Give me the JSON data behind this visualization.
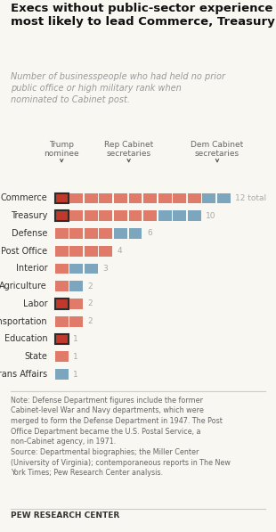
{
  "title": "Execs without public-sector experience\nmost likely to lead Commerce, Treasury",
  "subtitle": "Number of businesspeople who had held no prior\npublic office or high military rank when\nnominated to Cabinet post.",
  "categories": [
    "Commerce",
    "Treasury",
    "Defense",
    "Post Office",
    "Interior",
    "Agriculture",
    "Labor",
    "Transportation",
    "Education",
    "State",
    "Veterans Affairs"
  ],
  "trump_counts": [
    1,
    1,
    0,
    0,
    0,
    0,
    1,
    0,
    1,
    0,
    0
  ],
  "rep_counts": [
    9,
    6,
    4,
    4,
    1,
    1,
    1,
    2,
    0,
    1,
    0
  ],
  "dem_counts": [
    2,
    3,
    2,
    0,
    2,
    1,
    0,
    0,
    0,
    0,
    1
  ],
  "totals": [
    12,
    10,
    6,
    4,
    3,
    2,
    2,
    2,
    1,
    1,
    1
  ],
  "trump_color": "#c0392b",
  "rep_color": "#e07b6a",
  "dem_color": "#7ca6be",
  "trump_edge_color": "#2c2c2c",
  "note": "Note: Defense Department figures include the former\nCabinet-level War and Navy departments, which were\nmerged to form the Defense Department in 1947. The Post\nOffice Department became the U.S. Postal Service, a\nnon-Cabinet agency, in 1971.\nSource: Departmental biographies; the Miller Center\n(University of Virginia); contemporaneous reports in The New\nYork Times; Pew Research Center analysis.",
  "footer": "PEW RESEARCH CENTER",
  "bg_color": "#f9f7f2",
  "col_header_1": "Trump\nnominee",
  "col_header_2": "Rep Cabinet\nsecretaries",
  "col_header_3": "Dem Cabinet\nsecretaries"
}
